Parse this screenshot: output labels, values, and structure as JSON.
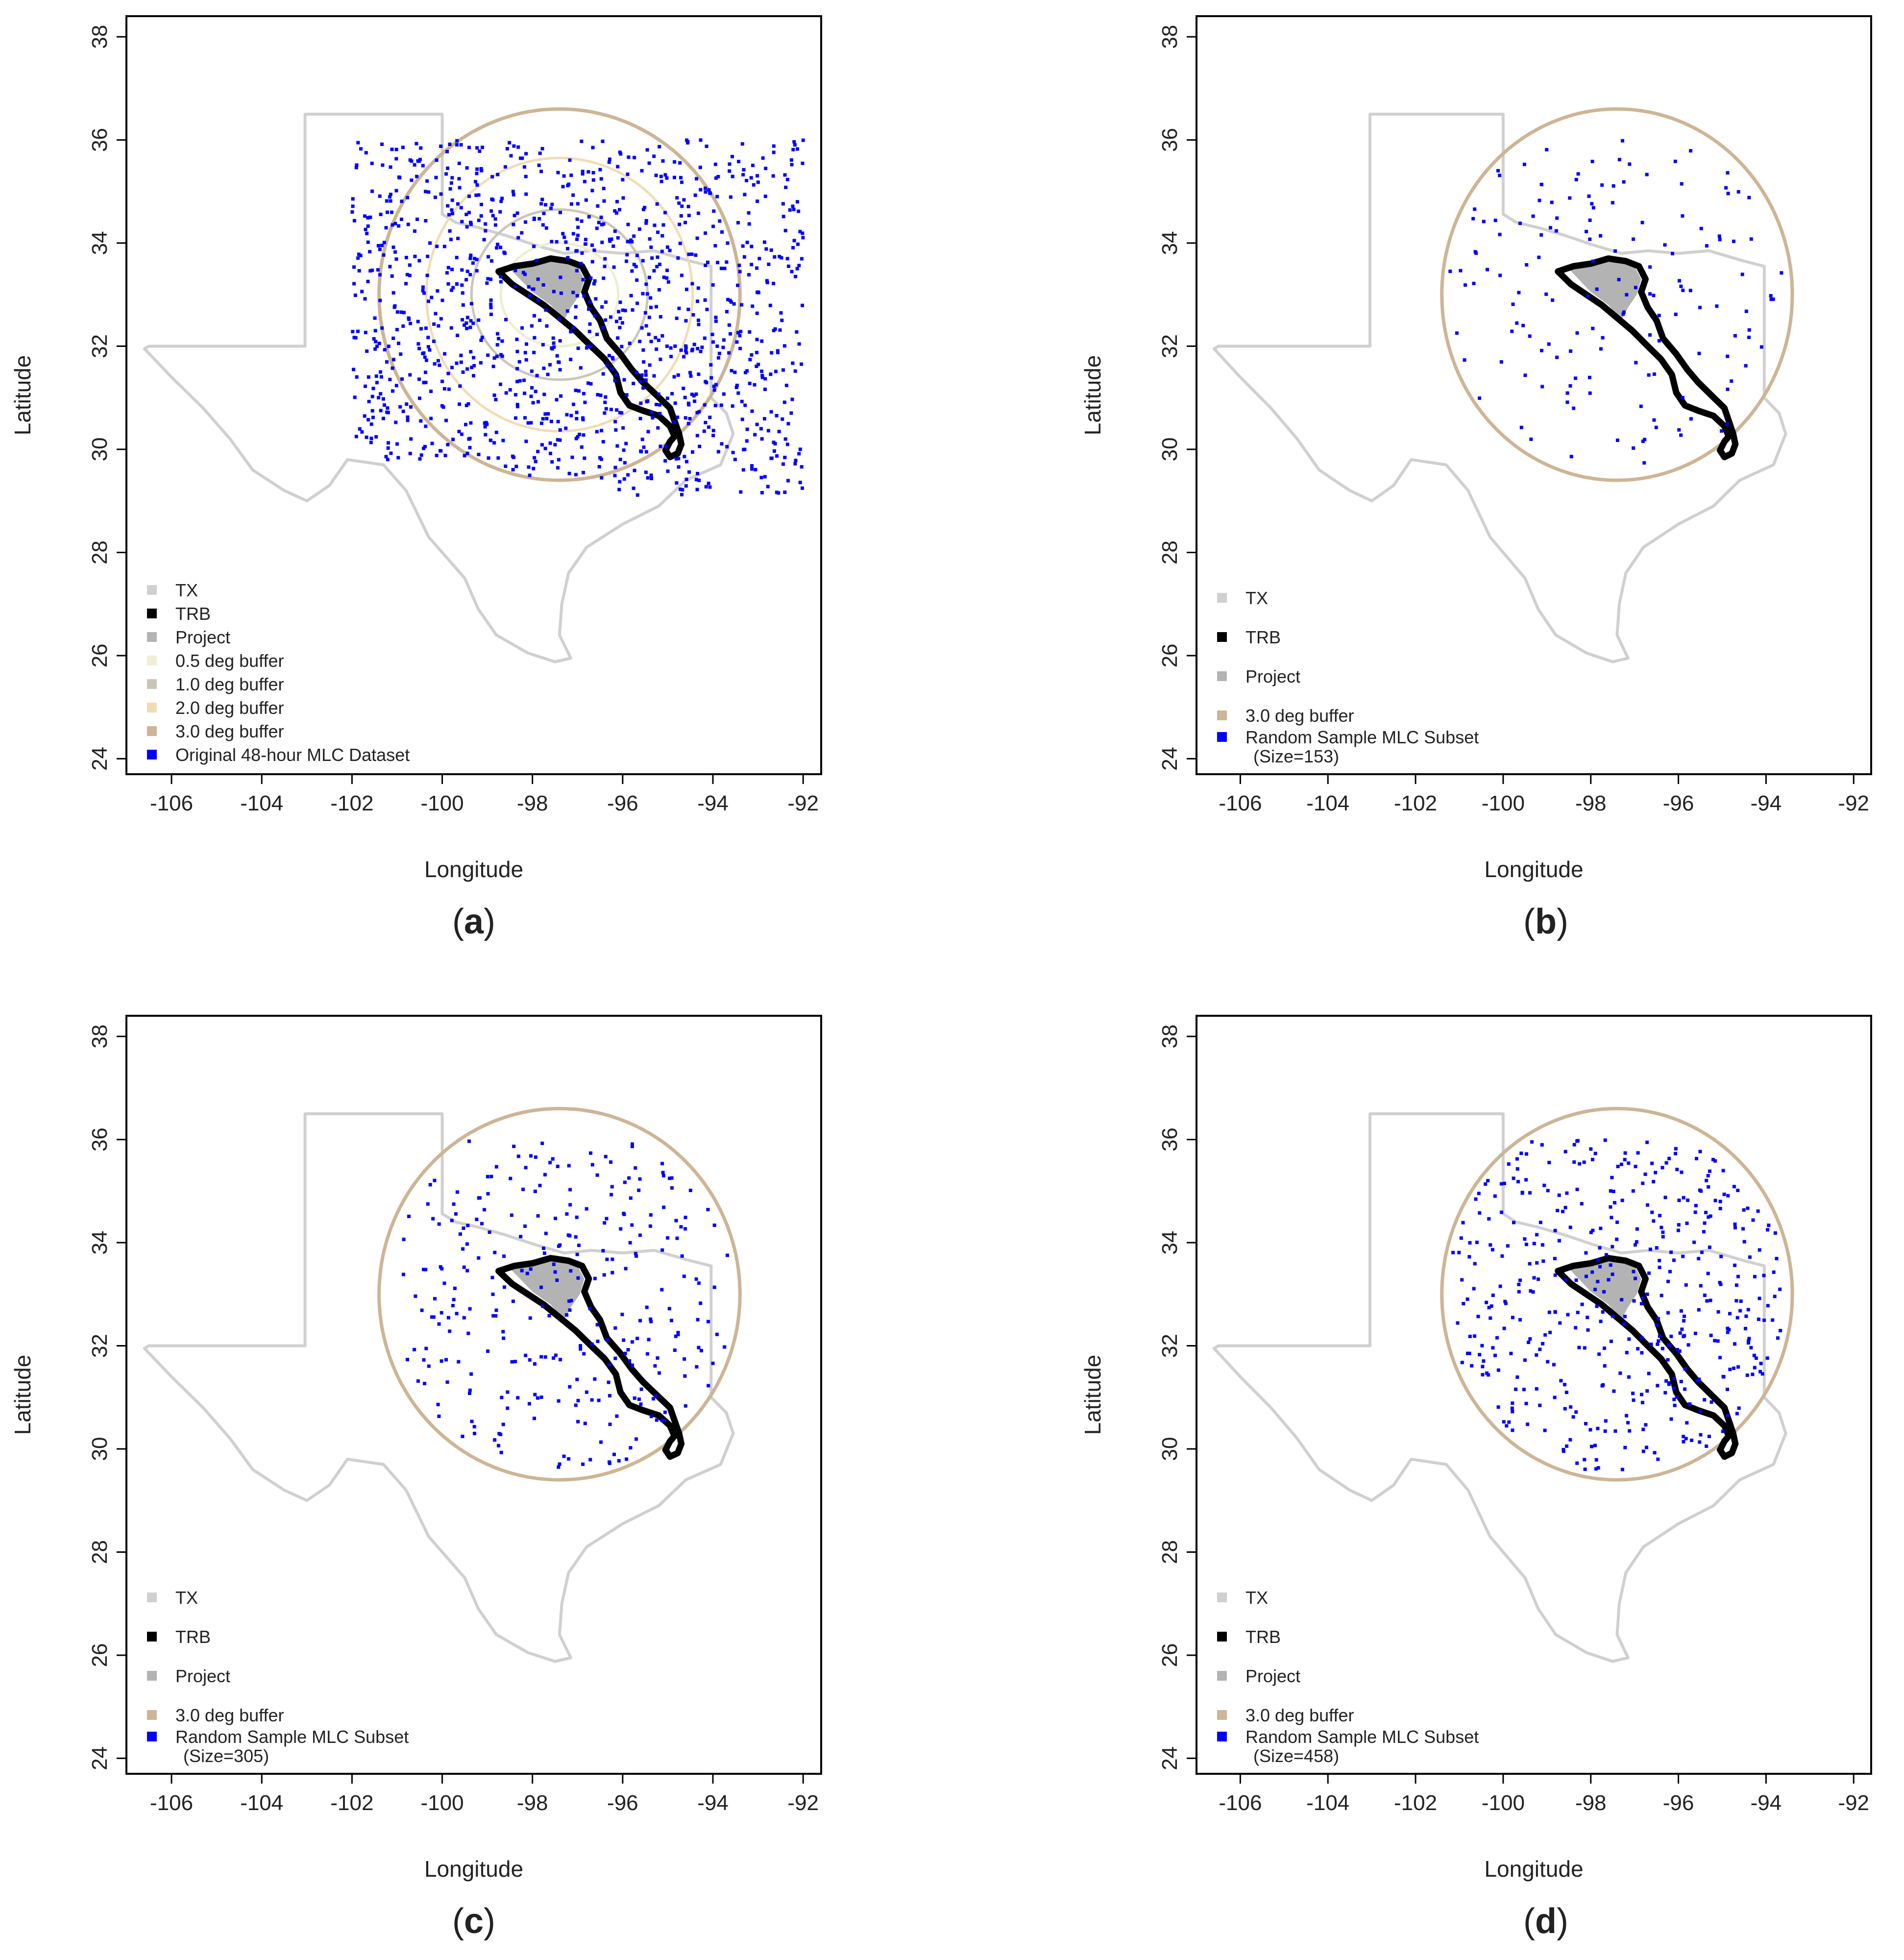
{
  "panels": [
    {
      "id": "a",
      "caption_open": "(",
      "caption_letter": "a",
      "caption_close": ")",
      "xlabel": "Longitude",
      "ylabel": "Latitude",
      "x_ticks": [
        "-106",
        "-104",
        "-102",
        "-100",
        "-98",
        "-96",
        "-94",
        "-92"
      ],
      "y_ticks": [
        "24",
        "26",
        "28",
        "30",
        "32",
        "34",
        "36",
        "38"
      ],
      "xlim": [
        -107,
        -91.6
      ],
      "ylim": [
        23.7,
        38.4
      ],
      "buffers_shown": [
        "0.5",
        "1.0",
        "2.0",
        "3.0"
      ],
      "points_extent": "grid",
      "point_count": 1200,
      "legend": [
        {
          "label": "TX",
          "color": "#d0d0d0"
        },
        {
          "label": "TRB",
          "color": "#000000"
        },
        {
          "label": "Project",
          "color": "#b3b3b3"
        },
        {
          "label": "0.5 deg buffer",
          "color": "#eeeed2"
        },
        {
          "label": "1.0 deg buffer",
          "color": "#c9c7b4"
        },
        {
          "label": "2.0 deg buffer",
          "color": "#f2dcb4"
        },
        {
          "label": "3.0 deg buffer",
          "color": "#cdb595"
        },
        {
          "label": "Original 48-hour MLC Dataset",
          "color": "#0000ff"
        }
      ]
    },
    {
      "id": "b",
      "caption_open": "(",
      "caption_letter": "b",
      "caption_close": ")",
      "xlabel": "Longitude",
      "ylabel": "Latitude",
      "x_ticks": [
        "-106",
        "-104",
        "-102",
        "-100",
        "-98",
        "-96",
        "-94",
        "-92"
      ],
      "y_ticks": [
        "24",
        "26",
        "28",
        "30",
        "32",
        "34",
        "36",
        "38"
      ],
      "xlim": [
        -107,
        -91.6
      ],
      "ylim": [
        23.7,
        38.4
      ],
      "buffers_shown": [
        "3.0"
      ],
      "points_extent": "buffer",
      "point_count": 153,
      "legend": [
        {
          "label": "TX",
          "color": "#d0d0d0"
        },
        {
          "label": "TRB",
          "color": "#000000"
        },
        {
          "label": "Project",
          "color": "#b3b3b3"
        },
        {
          "label": "3.0 deg buffer",
          "color": "#cdb595"
        },
        {
          "label": "Random Sample MLC Subset",
          "label2": "(Size=153)",
          "color": "#0000ff"
        }
      ]
    },
    {
      "id": "c",
      "caption_open": "(",
      "caption_letter": "c",
      "caption_close": ")",
      "xlabel": "Longitude",
      "ylabel": "Latitude",
      "x_ticks": [
        "-106",
        "-104",
        "-102",
        "-100",
        "-98",
        "-96",
        "-94",
        "-92"
      ],
      "y_ticks": [
        "24",
        "26",
        "28",
        "30",
        "32",
        "34",
        "36",
        "38"
      ],
      "xlim": [
        -107,
        -91.6
      ],
      "ylim": [
        23.7,
        38.4
      ],
      "buffers_shown": [
        "3.0"
      ],
      "points_extent": "buffer",
      "point_count": 305,
      "legend": [
        {
          "label": "TX",
          "color": "#d0d0d0"
        },
        {
          "label": "TRB",
          "color": "#000000"
        },
        {
          "label": "Project",
          "color": "#b3b3b3"
        },
        {
          "label": "3.0 deg buffer",
          "color": "#cdb595"
        },
        {
          "label": "Random Sample MLC Subset",
          "label2": "(Size=305)",
          "color": "#0000ff"
        }
      ]
    },
    {
      "id": "d",
      "caption_open": "(",
      "caption_letter": "d",
      "caption_close": ")",
      "xlabel": "Longitude",
      "ylabel": "Latitude",
      "x_ticks": [
        "-106",
        "-104",
        "-102",
        "-100",
        "-98",
        "-96",
        "-94",
        "-92"
      ],
      "y_ticks": [
        "24",
        "26",
        "28",
        "30",
        "32",
        "34",
        "36",
        "38"
      ],
      "xlim": [
        -107,
        -91.6
      ],
      "ylim": [
        23.7,
        38.4
      ],
      "buffers_shown": [
        "3.0"
      ],
      "points_extent": "buffer",
      "point_count": 458,
      "legend": [
        {
          "label": "TX",
          "color": "#d0d0d0"
        },
        {
          "label": "TRB",
          "color": "#000000"
        },
        {
          "label": "Project",
          "color": "#b3b3b3"
        },
        {
          "label": "3.0 deg buffer",
          "color": "#cdb595"
        },
        {
          "label": "Random Sample MLC Subset",
          "label2": "(Size=458)",
          "color": "#0000ff"
        }
      ]
    }
  ],
  "colors": {
    "texas_outline": "#d0d0d0",
    "basin_outline": "#000000",
    "project_fill": "#b3b3b3",
    "buffer_3_0": "#cdb595",
    "buffer_2_0": "#f2dcb4",
    "buffer_1_0": "#c9c7b4",
    "buffer_0_5": "#eeeed2",
    "points": "#0000ff"
  },
  "geography": {
    "texas_outline_lonlat": [
      [
        -103.04,
        36.5
      ],
      [
        -100.0,
        36.5
      ],
      [
        -100.0,
        34.56
      ],
      [
        -99.7,
        34.4
      ],
      [
        -99.2,
        34.3
      ],
      [
        -98.6,
        34.15
      ],
      [
        -97.9,
        33.95
      ],
      [
        -97.3,
        33.8
      ],
      [
        -96.7,
        33.85
      ],
      [
        -96.0,
        33.8
      ],
      [
        -95.3,
        33.85
      ],
      [
        -94.5,
        33.65
      ],
      [
        -94.04,
        33.55
      ],
      [
        -94.04,
        31.0
      ],
      [
        -93.7,
        30.7
      ],
      [
        -93.55,
        30.3
      ],
      [
        -93.83,
        29.7
      ],
      [
        -94.6,
        29.4
      ],
      [
        -95.2,
        28.9
      ],
      [
        -96.0,
        28.55
      ],
      [
        -96.8,
        28.1
      ],
      [
        -97.2,
        27.6
      ],
      [
        -97.35,
        27.0
      ],
      [
        -97.4,
        26.4
      ],
      [
        -97.15,
        25.95
      ],
      [
        -97.5,
        25.88
      ],
      [
        -98.1,
        26.05
      ],
      [
        -98.8,
        26.4
      ],
      [
        -99.2,
        26.9
      ],
      [
        -99.5,
        27.5
      ],
      [
        -100.3,
        28.3
      ],
      [
        -100.8,
        29.2
      ],
      [
        -101.3,
        29.7
      ],
      [
        -102.1,
        29.8
      ],
      [
        -102.5,
        29.3
      ],
      [
        -103.0,
        29.0
      ],
      [
        -103.5,
        29.2
      ],
      [
        -104.2,
        29.6
      ],
      [
        -104.7,
        30.2
      ],
      [
        -105.3,
        30.8
      ],
      [
        -106.0,
        31.4
      ],
      [
        -106.6,
        31.95
      ],
      [
        -106.5,
        32.0
      ],
      [
        -103.04,
        32.0
      ],
      [
        -103.04,
        36.5
      ]
    ],
    "basin_outline_lonlat": [
      [
        -98.75,
        33.45
      ],
      [
        -98.4,
        33.55
      ],
      [
        -98.0,
        33.6
      ],
      [
        -97.6,
        33.7
      ],
      [
        -97.2,
        33.65
      ],
      [
        -96.9,
        33.55
      ],
      [
        -96.75,
        33.3
      ],
      [
        -96.85,
        33.05
      ],
      [
        -96.7,
        32.75
      ],
      [
        -96.5,
        32.5
      ],
      [
        -96.35,
        32.15
      ],
      [
        -96.05,
        31.85
      ],
      [
        -95.8,
        31.55
      ],
      [
        -95.55,
        31.3
      ],
      [
        -95.25,
        31.05
      ],
      [
        -94.95,
        30.8
      ],
      [
        -94.85,
        30.55
      ],
      [
        -94.75,
        30.3
      ],
      [
        -94.7,
        30.1
      ],
      [
        -94.78,
        29.92
      ],
      [
        -94.95,
        29.85
      ],
      [
        -95.05,
        29.98
      ],
      [
        -94.95,
        30.15
      ],
      [
        -94.85,
        30.25
      ],
      [
        -94.95,
        30.45
      ],
      [
        -95.2,
        30.65
      ],
      [
        -95.55,
        30.75
      ],
      [
        -95.85,
        30.85
      ],
      [
        -96.05,
        31.1
      ],
      [
        -96.15,
        31.45
      ],
      [
        -96.4,
        31.75
      ],
      [
        -96.7,
        32.0
      ],
      [
        -97.05,
        32.3
      ],
      [
        -97.4,
        32.55
      ],
      [
        -97.75,
        32.8
      ],
      [
        -98.1,
        33.0
      ],
      [
        -98.45,
        33.2
      ],
      [
        -98.75,
        33.45
      ]
    ],
    "project_area_lonlat": [
      [
        -98.5,
        33.5
      ],
      [
        -98.0,
        33.6
      ],
      [
        -97.5,
        33.7
      ],
      [
        -97.0,
        33.55
      ],
      [
        -96.85,
        33.3
      ],
      [
        -96.95,
        33.0
      ],
      [
        -97.15,
        32.75
      ],
      [
        -97.3,
        32.5
      ],
      [
        -97.6,
        32.8
      ],
      [
        -98.0,
        33.05
      ],
      [
        -98.5,
        33.5
      ]
    ],
    "buffer_center_lonlat": [
      -97.4,
      33.0
    ],
    "buffer_radii_deg": {
      "0.5": [
        1.3,
        1.0
      ],
      "1.0": [
        1.95,
        1.65
      ],
      "2.0": [
        2.95,
        2.65
      ],
      "3.0": [
        4.0,
        3.6
      ]
    }
  }
}
